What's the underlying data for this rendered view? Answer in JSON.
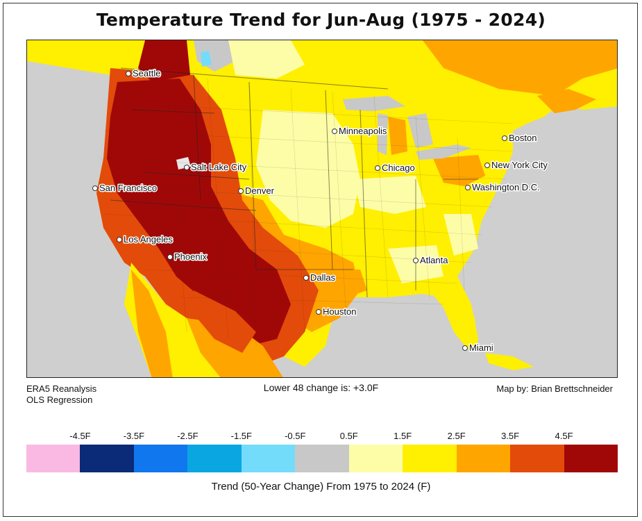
{
  "title": "Temperature Trend for Jun-Aug (1975 - 2024)",
  "source_lines": [
    "ERA5 Reanalysis",
    "OLS Regression"
  ],
  "summary": "Lower 48 change is: +3.0F",
  "credit": "Map by: Brian Brettschneider",
  "legend": {
    "title": "Trend (50-Year Change) From 1975 to 2024 (F)",
    "ticks": [
      "-4.5F",
      "-3.5F",
      "-2.5F",
      "-1.5F",
      "-0.5F",
      "0.5F",
      "1.5F",
      "2.5F",
      "3.5F",
      "4.5F"
    ],
    "colors": [
      "#f9b9e2",
      "#0b2a78",
      "#1177ee",
      "#0aa6e2",
      "#74dcfb",
      "#c8c8c8",
      "#fdfda8",
      "#ffef00",
      "#ffa500",
      "#e34b0a",
      "#a00808"
    ]
  },
  "cities": [
    {
      "name": "Seattle"
    },
    {
      "name": "San Francisco"
    },
    {
      "name": "Los Angeles"
    },
    {
      "name": "Phoenix"
    },
    {
      "name": "Salt Lake City"
    },
    {
      "name": "Denver"
    },
    {
      "name": "Minneapolis"
    },
    {
      "name": "Chicago"
    },
    {
      "name": "Dallas"
    },
    {
      "name": "Houston"
    },
    {
      "name": "Atlanta"
    },
    {
      "name": "Miami"
    },
    {
      "name": "Washington D.C."
    },
    {
      "name": "New York City"
    },
    {
      "name": "Boston"
    }
  ]
}
